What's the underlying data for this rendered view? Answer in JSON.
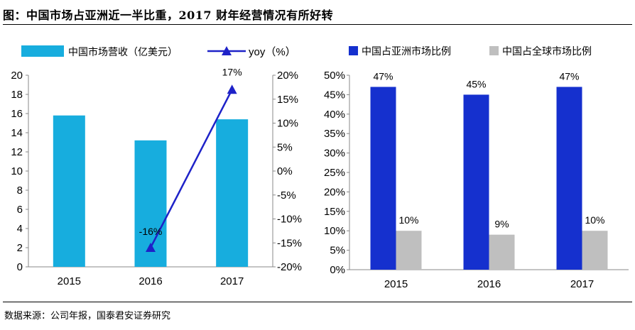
{
  "header": {
    "title": "图：中国市场占亚洲近一半比重，2017 财年经营情况有所好转"
  },
  "footer": {
    "source": "数据来源：公司年报，国泰君安证券研究"
  },
  "colors": {
    "revenue_bar": "#17ADDE",
    "yoy_line": "#1E22C8",
    "asia_bar": "#1530CE",
    "global_bar": "#BFBFBF"
  },
  "chart_data": [
    {
      "type": "bar+line",
      "categories": [
        "2015",
        "2016",
        "2017"
      ],
      "series": [
        {
          "name": "中国市场营收（亿美元）",
          "type": "bar",
          "axis": "left",
          "values": [
            15.8,
            13.2,
            15.4
          ]
        },
        {
          "name": "yoy（%）",
          "type": "line",
          "axis": "right",
          "values": [
            null,
            -16,
            17
          ],
          "labels": [
            "",
            "-16%",
            "17%"
          ]
        }
      ],
      "y_left": {
        "ylim": [
          0,
          20
        ],
        "ticks": [
          "0",
          "2",
          "4",
          "6",
          "8",
          "10",
          "12",
          "14",
          "16",
          "18",
          "20"
        ]
      },
      "y_right": {
        "ylim": [
          -20,
          20
        ],
        "ticks": [
          "-20%",
          "-15%",
          "-10%",
          "-5%",
          "0%",
          "5%",
          "10%",
          "15%",
          "20%"
        ]
      },
      "legend": "top-left"
    },
    {
      "type": "bar",
      "categories": [
        "2015",
        "2016",
        "2017"
      ],
      "series": [
        {
          "name": "中国占亚洲市场比例",
          "values": [
            47,
            45,
            47
          ],
          "labels": [
            "47%",
            "45%",
            "47%"
          ]
        },
        {
          "name": "中国占全球市场比例",
          "values": [
            10,
            9,
            10
          ],
          "labels": [
            "10%",
            "9%",
            "10%"
          ]
        }
      ],
      "ylim": [
        0,
        50
      ],
      "ticks": [
        "0%",
        "5%",
        "10%",
        "15%",
        "20%",
        "25%",
        "30%",
        "35%",
        "40%",
        "45%",
        "50%"
      ],
      "legend": "top"
    }
  ]
}
